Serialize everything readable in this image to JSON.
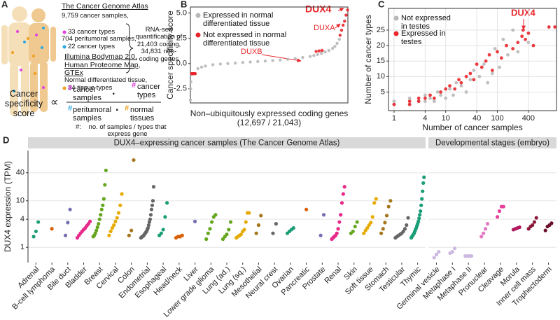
{
  "panel_a": {
    "label": "A",
    "tcga_title": "The Cancer Genome Atlas",
    "tcga_samples": "9,759 cancer samples,",
    "tcga_types": "33 cancer types",
    "peri_samples": "704 peritumoral samples,",
    "peri_types": "22 cancer types",
    "normal_title": "Illumina Bodymap 2.0, Human Proteome Map, GTEx",
    "normal_desc": "Normal differentiated tissue,",
    "normal_types": "34 tissue types",
    "rnaseq": "RNA-seq quantification of 21,403 coding, 34,831 non-coding genes",
    "score_label": "Cancer specificity score",
    "proportional": "∝",
    "hash": "#",
    "dot": "·",
    "cancer_samples": "cancer samples",
    "cancer_types": "cancer types",
    "peri": "peritumoral samples",
    "normal": "normal tissues",
    "footnote_key": "#:",
    "footnote": "no. of samples / types that express gene"
  },
  "chart_data": [
    {
      "type": "scatter",
      "label": "B",
      "ylabel": "Cancer specificity score",
      "xlabel": [
        "Non–ubiquitously expressed coding genes",
        "(12,697 / 21,043)"
      ],
      "xlim": [
        0,
        21043
      ],
      "ylim": [
        -3.9,
        5.6
      ],
      "yticks": [
        -2.5,
        {
          "value": 0,
          "label": "0.0"
        },
        2.5,
        {
          "value": 5,
          "label": "5.0"
        }
      ],
      "series": [
        {
          "name": "Expressed in normal differentiated tissue",
          "color": "#b8b8b8",
          "x": [
            0,
            30,
            60,
            100,
            1000,
            1500,
            2000,
            3000,
            4000,
            5000,
            6000,
            7000,
            8000,
            9000,
            10000,
            11000,
            12000,
            13000,
            14000,
            15000,
            16000,
            16500,
            17000,
            17500,
            18000,
            18500,
            19000,
            19300,
            19600,
            19900
          ],
          "values": [
            -3.6,
            -2.5,
            -1.8,
            -1.1,
            -0.5,
            -0.35,
            -0.25,
            -0.12,
            -0.05,
            0.0,
            0.05,
            0.1,
            0.15,
            0.2,
            0.25,
            0.3,
            0.35,
            0.42,
            0.5,
            0.6,
            0.7,
            0.8,
            0.9,
            1.0,
            1.15,
            1.3,
            1.5,
            1.7,
            2.0,
            2.4
          ]
        },
        {
          "name": "Not expressed in normal differentiated tissue",
          "color": "#e8262b",
          "x": [
            150,
            250,
            350,
            450,
            550,
            650,
            16800,
            17200,
            17600,
            20000,
            20200,
            20400,
            20600,
            20800,
            21000
          ],
          "values": [
            -1,
            -1,
            -1,
            -1,
            -1,
            -1,
            1.2,
            1.25,
            1.3,
            2.8,
            3.3,
            3.8,
            4.2,
            4.8,
            5.3
          ]
        }
      ],
      "annotations": [
        "DUX4",
        "DUXA",
        "DUXB"
      ]
    },
    {
      "type": "scatter",
      "label": "C",
      "ylabel": "Number of cancer types",
      "xlabel": "Number of cancer samples",
      "log_x": true,
      "grid": true,
      "xlim": [
        0.78,
        1400
      ],
      "ylim": [
        -1,
        32
      ],
      "xticks": [
        1,
        4,
        10,
        40,
        100,
        400
      ],
      "yticks": [
        5,
        10,
        15,
        20,
        25
      ],
      "series": [
        {
          "name": "Not expressed in testes",
          "color": "#b8b8b8",
          "x": [
            1,
            1,
            2,
            2,
            3,
            4,
            4,
            5,
            6,
            7,
            8,
            10,
            12,
            14,
            16,
            20,
            25,
            30,
            35,
            45,
            55,
            65,
            80,
            90,
            110,
            130,
            160,
            200,
            250,
            400
          ],
          "values": [
            1,
            2,
            1,
            3,
            2,
            2,
            4,
            3,
            2,
            5,
            4,
            3,
            6,
            4,
            8,
            7,
            5,
            9,
            12,
            10,
            14,
            8,
            11,
            19,
            13,
            22,
            17,
            25,
            18,
            21
          ]
        },
        {
          "name": "Expressed in testes",
          "color": "#e8262b",
          "x": [
            1,
            2,
            2,
            3,
            3,
            4,
            5,
            6,
            8,
            10,
            12,
            15,
            18,
            20,
            25,
            30,
            35,
            40,
            50,
            60,
            70,
            80,
            100,
            120,
            150,
            200,
            250,
            300,
            350,
            400,
            500,
            316,
            1000,
            1300
          ],
          "values": [
            1,
            1,
            2,
            2,
            3,
            3,
            4,
            3,
            5,
            6,
            7,
            6,
            9,
            8,
            10,
            11,
            9,
            14,
            13,
            15,
            17,
            12,
            18,
            16,
            20,
            19,
            21,
            23,
            22,
            24,
            20,
            25,
            26,
            26
          ]
        }
      ],
      "annotations": [
        "DUX4"
      ]
    },
    {
      "type": "strip",
      "label": "D",
      "ylabel": "DUX4 expression (TPM)",
      "log_scale": true,
      "grid": true,
      "ylim": [
        0.47,
        120
      ],
      "yticks": [
        1,
        4,
        10,
        40
      ],
      "facets": [
        {
          "title": "DUX4–expressing cancer samples (The Cancer Genome Atlas)",
          "categories": [
            "Adrenal",
            "B-cell lymphoma",
            "Bile duct",
            "Bladder",
            "Breast",
            "Cervical",
            "Colon",
            "Endometrial",
            "Esophageal",
            "Head/neck",
            "Liver",
            "Lower grade glioma",
            "Lung (ad.)",
            "Lung (sq.)",
            "Mesothelial",
            "Neural crest",
            "Ovarian",
            "Pancreatic",
            "Prostate",
            "Renal",
            "Skin",
            "Soft tissue",
            "Stomach",
            "Testicular",
            "Thymic"
          ],
          "colors": [
            "#1b9e77",
            "#d95f02",
            "#7570b3",
            "#e7298a",
            "#66a61e",
            "#e6ab02",
            "#a6761d",
            "#666666",
            "#1b9e77",
            "#d95f02",
            "#7570b3",
            "#66a61e",
            "#66a61e",
            "#e6ab02",
            "#a6761d",
            "#666666",
            "#1b9e77",
            "#d95f02",
            "#7570b3",
            "#e7298a",
            "#66a61e",
            "#e6ab02",
            "#a6761d",
            "#666666",
            "#1b9e77"
          ],
          "values": [
            [
              1.7,
              2.2,
              3.5
            ],
            [
              2.5
            ],
            [
              1.8,
              3.4,
              6.5
            ],
            [
              1.6,
              1.8,
              2.0,
              2.2,
              2.4,
              2.6,
              2.9,
              3.2,
              3.6
            ],
            [
              1.7,
              1.8,
              2.0,
              2.3,
              2.7,
              3.2,
              4.0,
              5.0,
              6.5,
              8.0,
              11,
              22,
              45
            ],
            [
              1.8,
              2.2,
              2.6,
              3.0,
              3.6,
              4.3,
              5.5,
              8,
              14
            ],
            [
              1.8,
              2.3,
              75
            ],
            [
              1.6,
              1.65,
              1.7,
              1.75,
              1.8,
              1.9,
              2.0,
              2.1,
              2.2,
              2.4,
              2.6,
              3.0,
              3.5,
              4,
              5,
              6.5,
              8,
              10,
              20
            ],
            [
              1.8,
              2.0,
              2.4,
              4.5,
              9
            ],
            [
              1.6,
              1.7,
              1.7,
              1.8
            ],
            [
              3.6
            ],
            [
              1.5,
              2.0,
              2.5,
              3.5,
              4.5,
              5
            ],
            [
              1.5,
              1.7,
              1.9,
              2.4,
              3.5
            ],
            [
              1.6,
              1.7,
              1.8,
              1.9,
              2.2,
              2.4,
              3.5,
              5.5,
              5.5
            ],
            [
              2.0,
              3.0,
              4.8
            ],
            [
              2.0,
              3.2
            ],
            [
              2.0,
              2.2,
              2.4,
              2.6
            ],
            [
              6.5
            ],
            [
              1.8,
              5
            ],
            [
              1.5,
              1.6,
              1.7,
              1.8,
              2,
              2.5,
              3.5,
              5,
              9,
              14,
              20
            ],
            [
              2.0,
              2.2,
              2.8,
              3.5
            ],
            [
              2.0,
              2.3,
              2.6,
              3.0,
              3.4,
              4.5,
              9,
              11
            ],
            [
              2.0,
              2.5,
              3.4,
              4.8,
              7.5,
              10
            ],
            [
              1.6,
              1.7,
              1.8,
              1.9,
              2.0,
              2.2,
              2.5,
              3.0,
              4.3
            ],
            [
              1.6,
              1.7,
              1.8,
              1.9,
              2.0,
              2.2,
              2.4,
              2.6,
              2.9,
              3.2,
              3.6,
              4.2,
              5,
              6,
              8,
              11,
              16,
              24,
              32
            ]
          ]
        },
        {
          "title": "Developmental stages (embryo)",
          "categories": [
            "Germinal vesicle",
            "Metaphase I",
            "Metaphase II",
            "Pronuclear",
            "Cleavage",
            "Morula",
            "Inner cell mass",
            "Trophectoderm"
          ],
          "colors": [
            "#cdb8e0",
            "#cdb8e0",
            "#cdb8e0",
            "#e377c2",
            "#e6419a",
            "#b0185e",
            "#8b1a3b",
            "#6b0f2a"
          ],
          "values": [
            [
              0.6,
              0.7,
              0.8
            ],
            [
              0.75,
              0.8,
              0.95
            ],
            [
              0.65,
              0.65,
              0.65,
              0.65
            ],
            [
              1.7,
              2.0,
              2.5,
              3.2
            ],
            [
              4.5,
              6,
              7.5,
              7.5
            ],
            [
              2.4,
              2.5,
              2.6,
              2.7
            ],
            [
              2.5,
              2.8,
              3.0,
              3.5,
              4.3
            ],
            [
              2.3,
              2.8,
              3.0,
              3.3
            ]
          ]
        }
      ]
    }
  ]
}
